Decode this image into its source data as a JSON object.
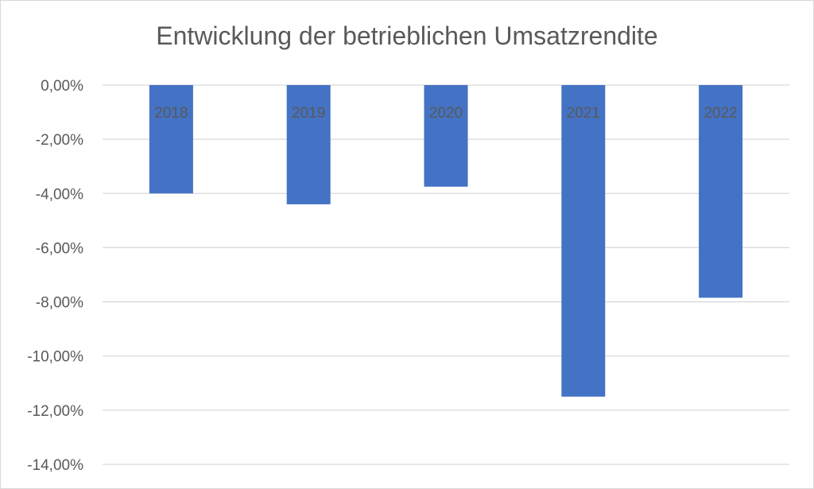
{
  "chart_data": {
    "type": "bar",
    "title": "Entwicklung der betrieblichen Umsatzrendite",
    "categories": [
      "2018",
      "2019",
      "2020",
      "2021",
      "2022"
    ],
    "values": [
      -4.0,
      -4.4,
      -3.75,
      -11.5,
      -7.85
    ],
    "ylim": [
      -14,
      0
    ],
    "yticks": [
      0,
      -2,
      -4,
      -6,
      -8,
      -10,
      -12,
      -14
    ],
    "ytick_labels": [
      "0,00%",
      "-2,00%",
      "-4,00%",
      "-6,00%",
      "-8,00%",
      "-10,00%",
      "-12,00%",
      "-14,00%"
    ],
    "grid": true,
    "bar_color": "#4472c4",
    "category_labels_position": "inside-top"
  }
}
